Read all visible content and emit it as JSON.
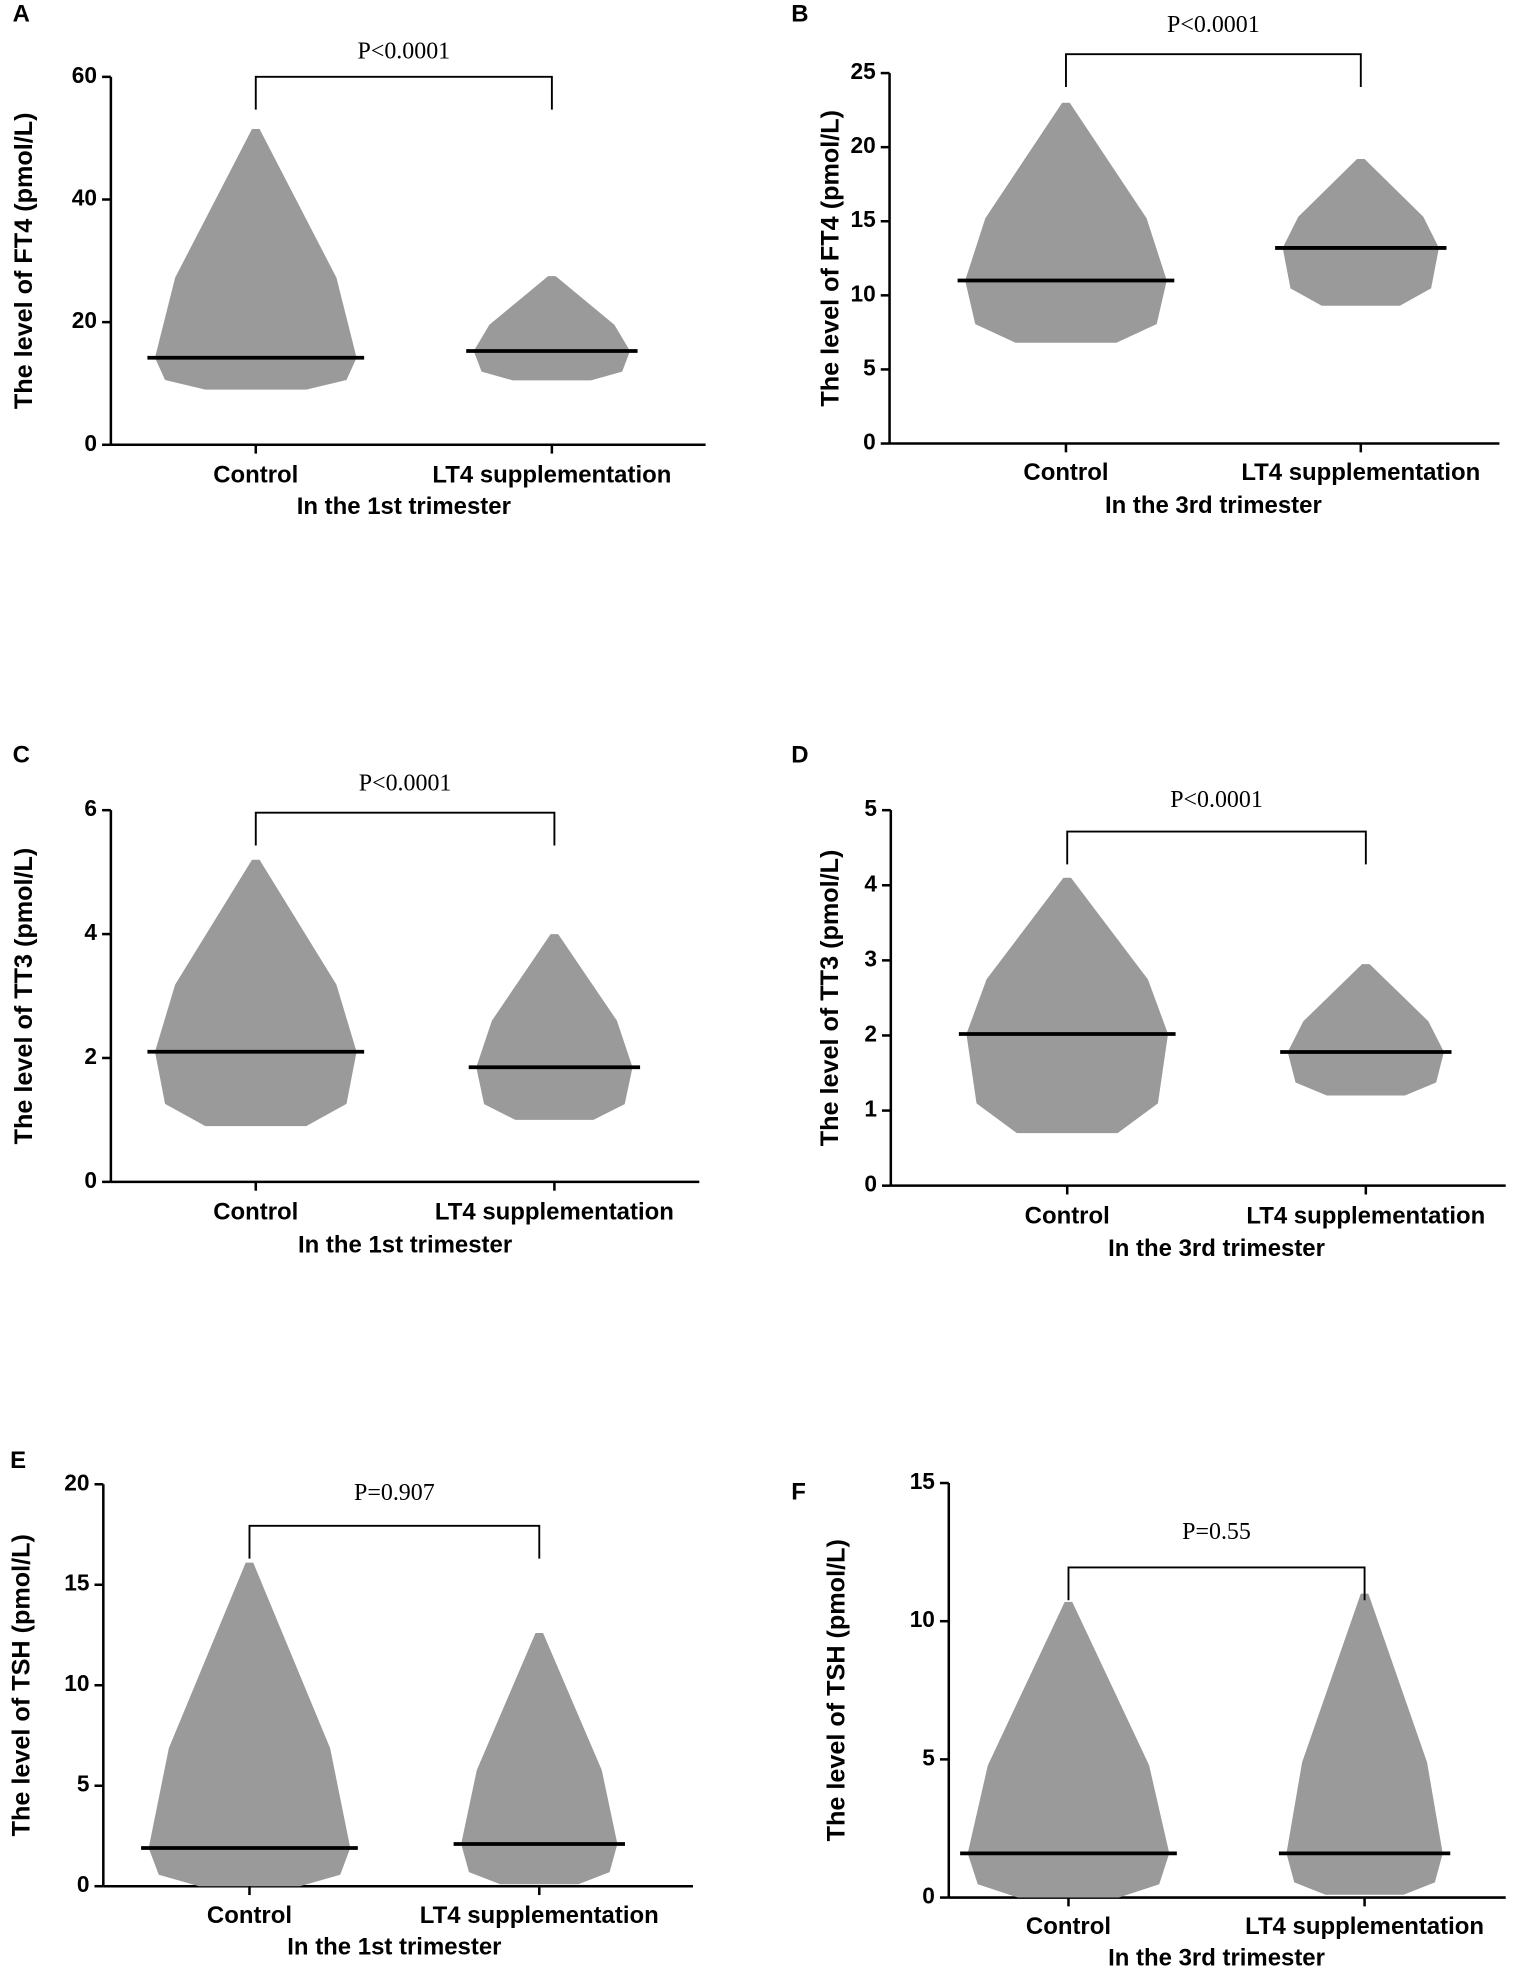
{
  "chart_data": [
    {
      "type": "dotplot",
      "panel": "A",
      "y_label": "The level of FT4 (pmol/L)",
      "x_label": "In the 1st trimester",
      "annotation": "P<0.0001",
      "categories": [
        "Control",
        "LT4 supplementation"
      ],
      "values": [
        14.2,
        15.3
      ],
      "min": [
        9,
        10.5
      ],
      "max": [
        51.5,
        27.5
      ],
      "ylim": [
        0,
        60
      ],
      "yticks": [
        0,
        20,
        40,
        60
      ],
      "color": "#9a9a9a"
    },
    {
      "type": "dotplot",
      "panel": "B",
      "y_label": "The level of FT4 (pmol/L)",
      "x_label": "In the 3rd trimester",
      "annotation": "P<0.0001",
      "categories": [
        "Control",
        "LT4 supplementation"
      ],
      "values": [
        11,
        13.2
      ],
      "min": [
        6.8,
        9.3
      ],
      "max": [
        23,
        19.2
      ],
      "ylim": [
        0,
        25
      ],
      "yticks": [
        0,
        5,
        10,
        15,
        20,
        25
      ],
      "color": "#9a9a9a"
    },
    {
      "type": "dotplot",
      "panel": "C",
      "y_label": "The level of TT3 (pmol/L)",
      "x_label": "In the 1st trimester",
      "annotation": "P<0.0001",
      "categories": [
        "Control",
        "LT4 supplementation"
      ],
      "values": [
        2.1,
        1.85
      ],
      "min": [
        0.9,
        1.0
      ],
      "max": [
        5.2,
        4.0
      ],
      "ylim": [
        0,
        6
      ],
      "yticks": [
        0,
        2,
        4,
        6
      ],
      "color": "#9a9a9a"
    },
    {
      "type": "dotplot",
      "panel": "D",
      "y_label": "The level of TT3 (pmol/L)",
      "x_label": "In the 3rd trimester",
      "annotation": "P<0.0001",
      "categories": [
        "Control",
        "LT4 supplementation"
      ],
      "values": [
        2.02,
        1.78
      ],
      "min": [
        0.7,
        1.2
      ],
      "max": [
        4.1,
        2.95
      ],
      "ylim": [
        0,
        5
      ],
      "yticks": [
        0,
        1,
        2,
        3,
        4,
        5
      ],
      "color": "#9a9a9a"
    },
    {
      "type": "dotplot",
      "panel": "E",
      "y_label": "The level of TSH (pmol/L)",
      "x_label": "In the 1st trimester",
      "annotation": "P=0.907",
      "categories": [
        "Control",
        "LT4 supplementation"
      ],
      "values": [
        1.9,
        2.1
      ],
      "min": [
        0,
        0.1
      ],
      "max": [
        16.1,
        12.6
      ],
      "ylim": [
        0,
        20
      ],
      "yticks": [
        0,
        5,
        10,
        15,
        20
      ],
      "color": "#9a9a9a"
    },
    {
      "type": "dotplot",
      "panel": "F",
      "y_label": "The level of TSH (pmol/L)",
      "x_label": "In the 3rd trimester",
      "annotation": "P=0.55",
      "categories": [
        "Control",
        "LT4 supplementation"
      ],
      "values": [
        1.6,
        1.6
      ],
      "min": [
        0,
        0.1
      ],
      "max": [
        10.7,
        11
      ],
      "ylim": [
        0,
        15
      ],
      "yticks": [
        0,
        5,
        10,
        15
      ],
      "color": "#9a9a9a"
    }
  ]
}
